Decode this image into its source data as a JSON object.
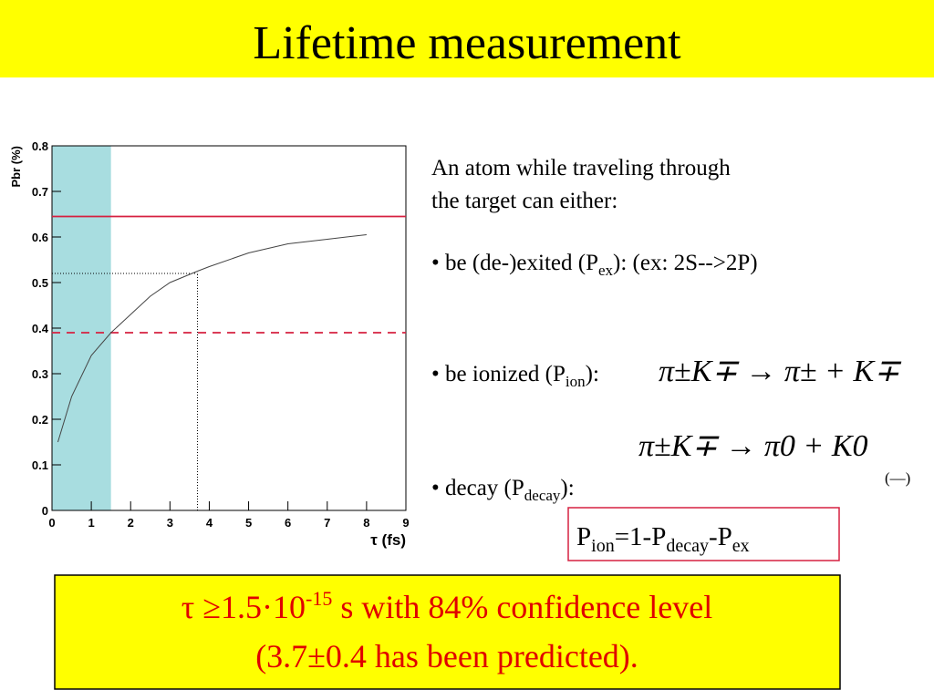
{
  "header": {
    "title": "Lifetime measurement"
  },
  "chart_data": {
    "type": "line",
    "x": [
      0.15,
      0.5,
      1,
      1.5,
      2,
      2.5,
      3,
      3.7,
      4,
      5,
      6,
      7,
      8
    ],
    "series": [
      {
        "color": "#444444",
        "values": [
          0.15,
          0.25,
          0.34,
          0.39,
          0.43,
          0.47,
          0.5,
          0.525,
          0.535,
          0.565,
          0.585,
          0.595,
          0.605
        ]
      }
    ],
    "xlim": [
      0,
      9
    ],
    "ylim": [
      0,
      0.8
    ],
    "xticks": [
      0,
      1,
      2,
      3,
      4,
      5,
      6,
      7,
      8,
      9
    ],
    "yticks": [
      0,
      0.1,
      0.2,
      0.3,
      0.4,
      0.5,
      0.6,
      0.7,
      0.8
    ],
    "xlabel": "τ (fs)",
    "ylabel": "Pbr (%)",
    "shaded_xrange": [
      0,
      1.5
    ],
    "shade_color": "#a8dde0",
    "hlines": [
      {
        "value": 0.645,
        "color": "#d62040",
        "style": "solid"
      },
      {
        "value": 0.39,
        "color": "#d62040",
        "style": "dashed"
      }
    ],
    "marker": {
      "x": 3.7,
      "y": 0.52
    }
  },
  "text": {
    "intro": "An atom while traveling through the target can either:",
    "bullet1": [
      "• be (de-)exited (P",
      "ex",
      "): (ex: 2S-->2P)"
    ],
    "bullet2": [
      "• be ionized (P",
      "ion",
      "):"
    ],
    "formula1": "π±K∓ → π± + K∓",
    "formula2": "π±K∓ → π0 + K0",
    "formula2_note": "(—)",
    "bullet3": [
      "• decay (P",
      "decay",
      "):"
    ],
    "relation": [
      "P",
      "ion",
      "=1-P",
      "decay",
      "-P",
      "ex"
    ]
  },
  "result": {
    "line1": [
      "τ ≥1.5·10",
      "-15",
      " s with 84% confidence level"
    ],
    "line2": "(3.7±0.4 has been predicted)."
  }
}
